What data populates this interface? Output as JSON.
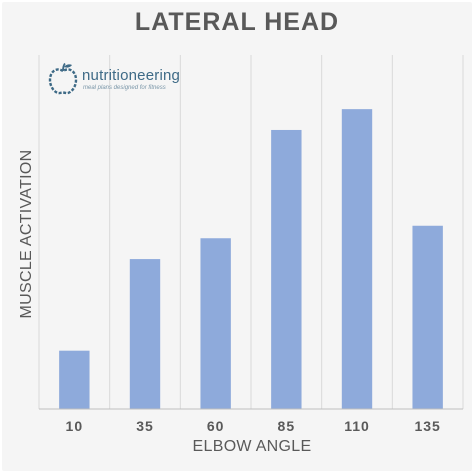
{
  "chart_data": {
    "type": "bar",
    "title": "LATERAL HEAD",
    "xlabel": "ELBOW ANGLE",
    "ylabel": "MUSCLE ACTIVATION",
    "categories": [
      "10",
      "35",
      "60",
      "85",
      "110",
      "135"
    ],
    "values": [
      14,
      36,
      41,
      67,
      72,
      44
    ],
    "ylim": [
      0,
      85
    ],
    "y_ticks_shown": false,
    "grid": "vertical",
    "legend": "none",
    "bar_color": "#8eaadb",
    "grid_color": "#d9d9d9",
    "axis_color": "#bfbfbf"
  },
  "watermark": {
    "name": "nutritioneering",
    "tagline": "meal plans designed for fitness",
    "icon": "apple-logo-icon",
    "color": "#3e6a86"
  }
}
